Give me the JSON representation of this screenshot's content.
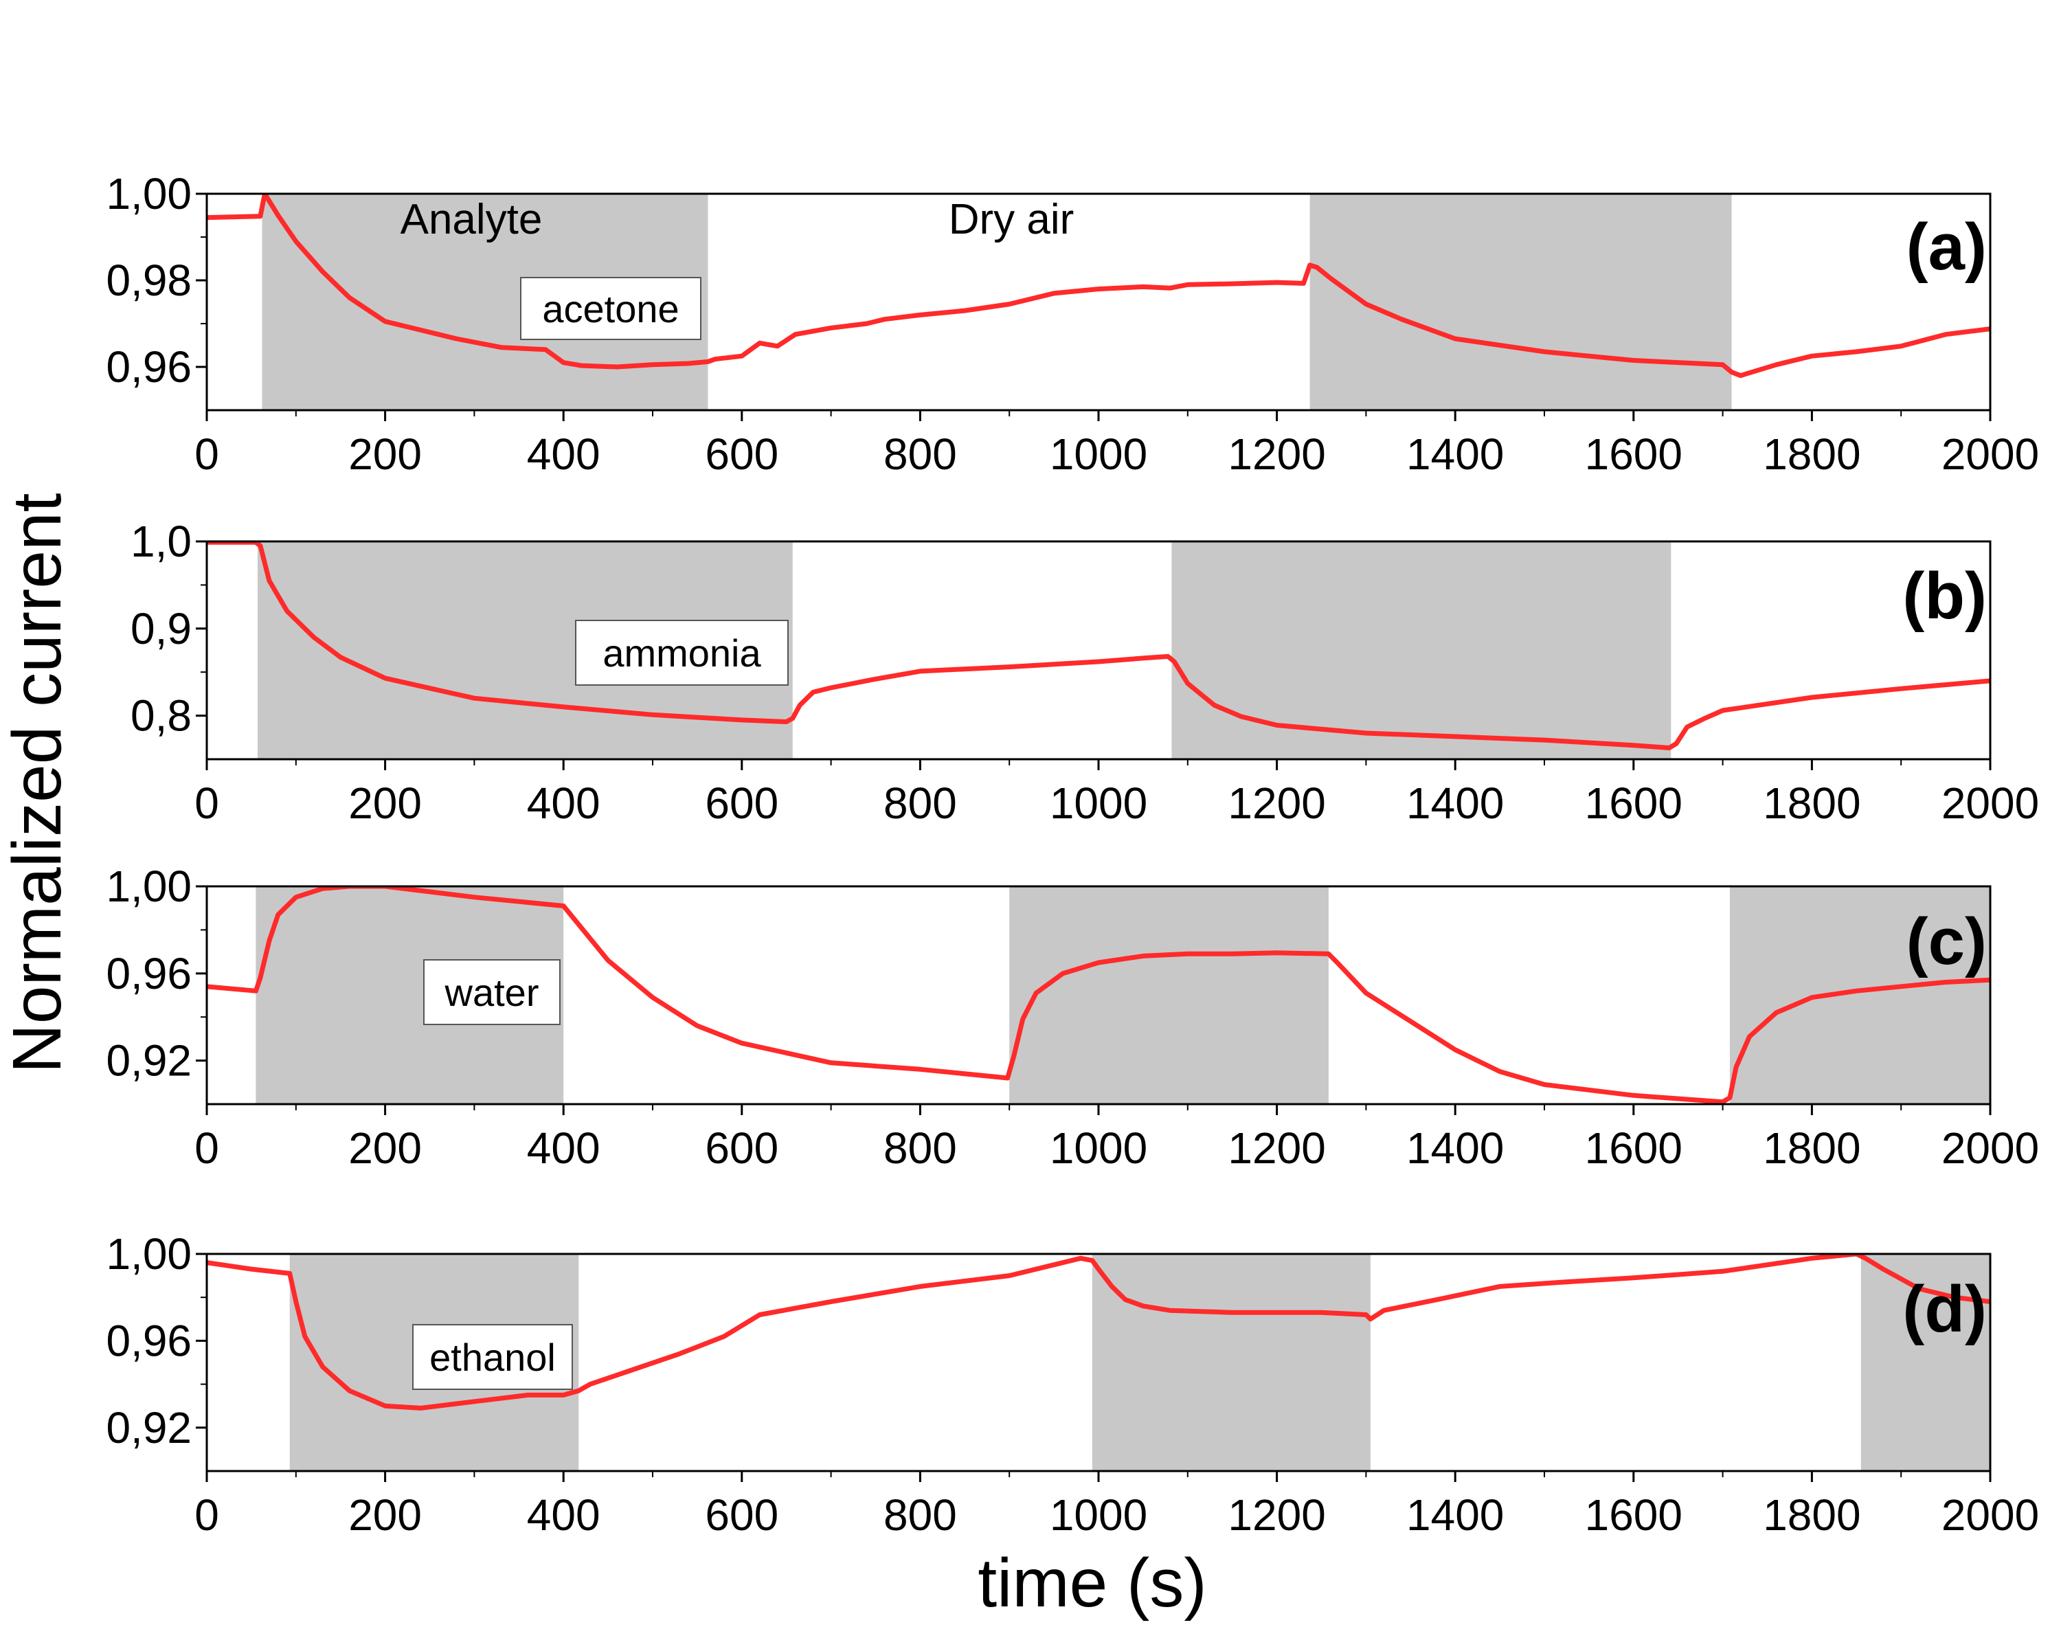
{
  "figure": {
    "ylabel": "Normalized current",
    "xlabel": "time (s)"
  },
  "style": {
    "line_color": "#ff2a2a",
    "shade_color": "#c8c8c8",
    "axis_color": "#000000"
  },
  "chart_data": [
    {
      "type": "line",
      "panel": "(a)",
      "analyte": "acetone",
      "region_labels": {
        "analyte": "Analyte",
        "dry_air": "Dry air"
      },
      "xlim": [
        0,
        2000
      ],
      "ylim": [
        0.95,
        1.0
      ],
      "x_ticks": [
        "0",
        "200",
        "400",
        "600",
        "800",
        "1000",
        "1200",
        "1400",
        "1600",
        "1800",
        "2000"
      ],
      "y_ticks": [
        {
          "v": 0.96,
          "label": "0,96"
        },
        {
          "v": 0.98,
          "label": "0,98"
        },
        {
          "v": 1.0,
          "label": "1,00"
        }
      ],
      "exposure_intervals": [
        [
          62,
          562
        ],
        [
          1237,
          1710
        ]
      ],
      "x": [
        0,
        60,
        65,
        80,
        100,
        130,
        160,
        200,
        240,
        280,
        330,
        380,
        400,
        420,
        460,
        500,
        540,
        562,
        570,
        600,
        620,
        640,
        660,
        700,
        740,
        760,
        800,
        850,
        900,
        950,
        1000,
        1050,
        1080,
        1100,
        1150,
        1200,
        1230,
        1237,
        1245,
        1260,
        1280,
        1300,
        1340,
        1400,
        1500,
        1600,
        1700,
        1710,
        1720,
        1760,
        1800,
        1850,
        1900,
        1950,
        2000
      ],
      "y": [
        0.9945,
        0.9948,
        1.0,
        0.995,
        0.989,
        0.982,
        0.976,
        0.9705,
        0.9685,
        0.9665,
        0.9645,
        0.964,
        0.961,
        0.9603,
        0.96,
        0.9605,
        0.9608,
        0.9612,
        0.9618,
        0.9625,
        0.9655,
        0.9648,
        0.9675,
        0.969,
        0.97,
        0.971,
        0.972,
        0.973,
        0.9745,
        0.977,
        0.978,
        0.9785,
        0.9782,
        0.979,
        0.9792,
        0.9795,
        0.9793,
        0.9835,
        0.983,
        0.9805,
        0.9775,
        0.9745,
        0.971,
        0.9665,
        0.9635,
        0.9615,
        0.9605,
        0.9588,
        0.958,
        0.9605,
        0.9625,
        0.9635,
        0.9648,
        0.9675,
        0.9688
      ]
    },
    {
      "type": "line",
      "panel": "(b)",
      "analyte": "ammonia",
      "xlim": [
        0,
        2000
      ],
      "ylim": [
        0.75,
        1.0
      ],
      "x_ticks": [
        "0",
        "200",
        "400",
        "600",
        "800",
        "1000",
        "1200",
        "1400",
        "1600",
        "1800",
        "2000"
      ],
      "y_ticks": [
        {
          "v": 0.8,
          "label": "0,8"
        },
        {
          "v": 0.9,
          "label": "0,9"
        },
        {
          "v": 1.0,
          "label": "1,0"
        }
      ],
      "exposure_intervals": [
        [
          57,
          657
        ],
        [
          1082,
          1642
        ]
      ],
      "x": [
        0,
        55,
        60,
        70,
        90,
        120,
        150,
        200,
        300,
        400,
        500,
        600,
        650,
        657,
        665,
        680,
        700,
        750,
        800,
        900,
        1000,
        1050,
        1078,
        1085,
        1100,
        1130,
        1160,
        1200,
        1300,
        1400,
        1500,
        1600,
        1640,
        1648,
        1660,
        1680,
        1700,
        1800,
        1900,
        2000
      ],
      "y": [
        0.999,
        0.999,
        0.995,
        0.955,
        0.92,
        0.89,
        0.867,
        0.843,
        0.82,
        0.81,
        0.801,
        0.795,
        0.793,
        0.797,
        0.812,
        0.827,
        0.832,
        0.842,
        0.851,
        0.856,
        0.862,
        0.866,
        0.868,
        0.862,
        0.837,
        0.812,
        0.799,
        0.789,
        0.78,
        0.776,
        0.772,
        0.766,
        0.763,
        0.768,
        0.787,
        0.797,
        0.806,
        0.821,
        0.831,
        0.84
      ]
    },
    {
      "type": "line",
      "panel": "(c)",
      "analyte": "water",
      "xlim": [
        0,
        2000
      ],
      "ylim": [
        0.9,
        1.0
      ],
      "x_ticks": [
        "0",
        "200",
        "400",
        "600",
        "800",
        "1000",
        "1200",
        "1400",
        "1600",
        "1800",
        "2000"
      ],
      "y_ticks": [
        {
          "v": 0.92,
          "label": "0,92"
        },
        {
          "v": 0.96,
          "label": "0,96"
        },
        {
          "v": 1.0,
          "label": "1,00"
        }
      ],
      "exposure_intervals": [
        [
          55,
          400
        ],
        [
          900,
          1258
        ],
        [
          1708,
          2000
        ]
      ],
      "x": [
        0,
        55,
        60,
        70,
        80,
        100,
        130,
        160,
        200,
        300,
        400,
        410,
        450,
        500,
        550,
        600,
        700,
        800,
        898,
        905,
        915,
        930,
        960,
        1000,
        1050,
        1100,
        1150,
        1200,
        1258,
        1270,
        1300,
        1350,
        1400,
        1450,
        1500,
        1600,
        1700,
        1708,
        1715,
        1730,
        1760,
        1800,
        1850,
        1900,
        1950,
        2000
      ],
      "y": [
        0.954,
        0.952,
        0.958,
        0.975,
        0.987,
        0.995,
        0.999,
        1.0,
        1.0,
        0.995,
        0.991,
        0.986,
        0.966,
        0.949,
        0.936,
        0.928,
        0.919,
        0.916,
        0.912,
        0.922,
        0.939,
        0.951,
        0.96,
        0.965,
        0.968,
        0.969,
        0.969,
        0.9695,
        0.969,
        0.964,
        0.951,
        0.938,
        0.925,
        0.915,
        0.909,
        0.904,
        0.901,
        0.903,
        0.917,
        0.931,
        0.942,
        0.949,
        0.952,
        0.954,
        0.956,
        0.957
      ]
    },
    {
      "type": "line",
      "panel": "(d)",
      "analyte": "ethanol",
      "xlim": [
        0,
        2000
      ],
      "ylim": [
        0.9,
        1.0
      ],
      "x_ticks": [
        "0",
        "200",
        "400",
        "600",
        "800",
        "1000",
        "1200",
        "1400",
        "1600",
        "1800",
        "2000"
      ],
      "y_ticks": [
        {
          "v": 0.92,
          "label": "0,92"
        },
        {
          "v": 0.96,
          "label": "0,96"
        },
        {
          "v": 1.0,
          "label": "1,00"
        }
      ],
      "exposure_intervals": [
        [
          93,
          417
        ],
        [
          993,
          1305
        ],
        [
          1855,
          2000
        ]
      ],
      "x": [
        0,
        50,
        93,
        100,
        110,
        130,
        160,
        200,
        240,
        280,
        320,
        360,
        400,
        417,
        430,
        480,
        530,
        580,
        620,
        700,
        800,
        900,
        980,
        993,
        1000,
        1015,
        1030,
        1050,
        1080,
        1150,
        1200,
        1250,
        1300,
        1305,
        1320,
        1380,
        1450,
        1520,
        1600,
        1700,
        1800,
        1850,
        1860,
        1880,
        1920,
        1960,
        2000
      ],
      "y": [
        0.996,
        0.993,
        0.991,
        0.978,
        0.962,
        0.948,
        0.937,
        0.93,
        0.929,
        0.931,
        0.933,
        0.935,
        0.935,
        0.937,
        0.94,
        0.947,
        0.954,
        0.962,
        0.972,
        0.978,
        0.985,
        0.99,
        0.998,
        0.997,
        0.993,
        0.985,
        0.979,
        0.976,
        0.974,
        0.973,
        0.973,
        0.973,
        0.972,
        0.97,
        0.974,
        0.979,
        0.985,
        0.987,
        0.989,
        0.992,
        0.998,
        1.0,
        0.998,
        0.993,
        0.984,
        0.98,
        0.978
      ]
    }
  ]
}
